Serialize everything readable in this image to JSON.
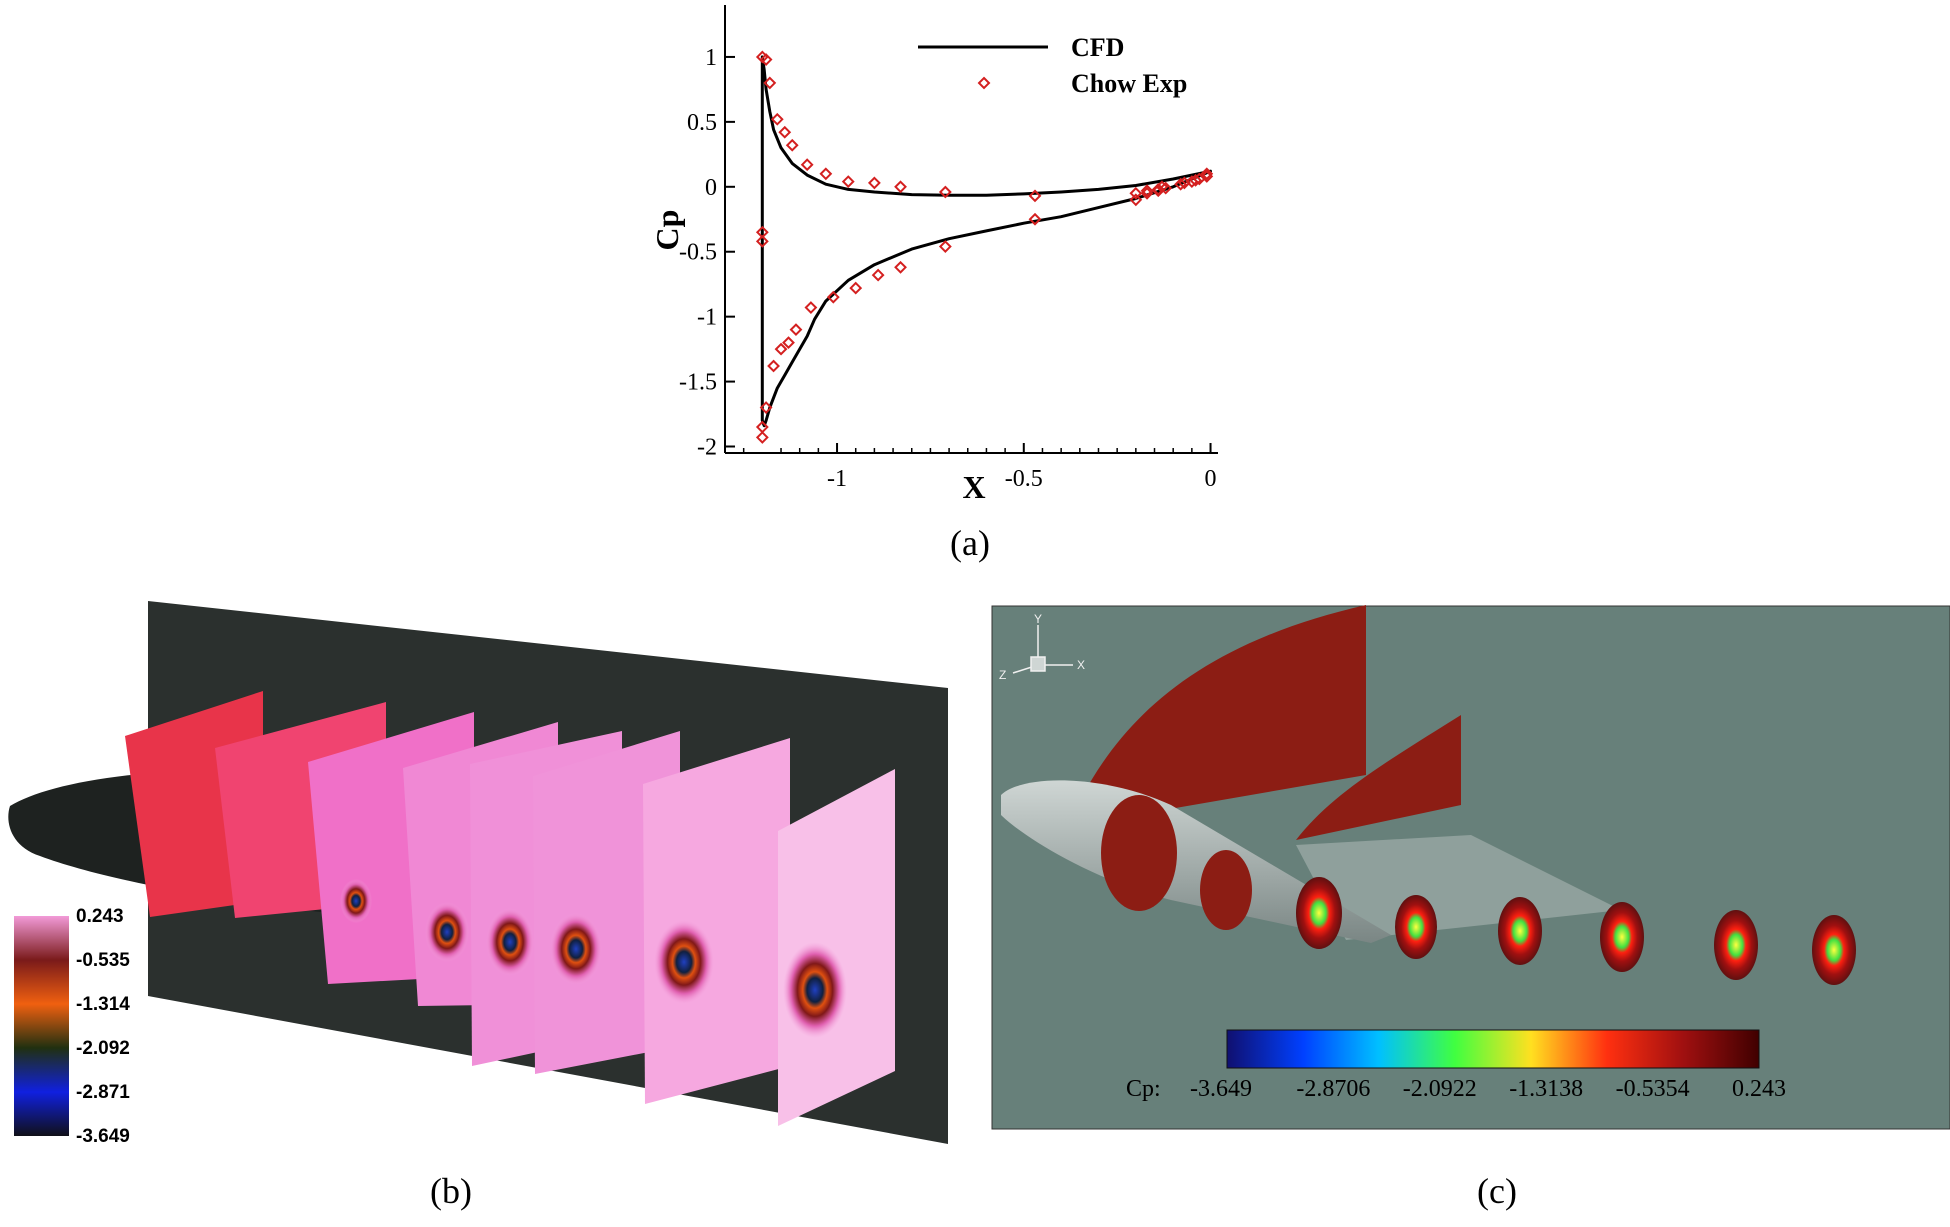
{
  "chart_data": {
    "type": "line",
    "xlabel": "X",
    "ylabel": "Cp",
    "xlim": [
      -1.3,
      0.02
    ],
    "ylim": [
      -2.05,
      1.4
    ],
    "x_ticks": [
      "-1",
      "-0.5",
      "0"
    ],
    "y_ticks": [
      "1",
      "0.5",
      "0",
      "-0.5",
      "-1",
      "-1.5",
      "-2"
    ],
    "x_tick_values": [
      -1,
      -0.5,
      0
    ],
    "y_tick_values": [
      1,
      0.5,
      0,
      -0.5,
      -1,
      -1.5,
      -2
    ],
    "legend_position": "top-right",
    "series": [
      {
        "name": "CFD",
        "style": "solid black line",
        "x": [
          -1.2,
          -1.2,
          -1.195,
          -1.19,
          -1.18,
          -1.17,
          -1.15,
          -1.12,
          -1.08,
          -1.03,
          -0.97,
          -0.9,
          -0.8,
          -0.7,
          -0.6,
          -0.5,
          -0.4,
          -0.3,
          -0.2,
          -0.1,
          0.0,
          -0.1,
          -0.2,
          -0.3,
          -0.4,
          -0.5,
          -0.6,
          -0.7,
          -0.8,
          -0.9,
          -0.97,
          -1.03,
          -1.06,
          -1.08,
          -1.1,
          -1.12,
          -1.14,
          -1.16,
          -1.18,
          -1.19,
          -1.195,
          -1.2,
          -1.2
        ],
        "y": [
          -1.35,
          1.0,
          0.9,
          0.75,
          0.58,
          0.44,
          0.3,
          0.18,
          0.09,
          0.02,
          -0.02,
          -0.04,
          -0.06,
          -0.065,
          -0.065,
          -0.055,
          -0.04,
          -0.02,
          0.01,
          0.06,
          0.12,
          0.0,
          -0.09,
          -0.16,
          -0.23,
          -0.28,
          -0.34,
          -0.4,
          -0.48,
          -0.6,
          -0.72,
          -0.88,
          -1.02,
          -1.15,
          -1.25,
          -1.35,
          -1.45,
          -1.55,
          -1.7,
          -1.8,
          -1.84,
          -1.8,
          -1.35
        ]
      },
      {
        "name": "Chow Exp",
        "style": "red open diamond markers",
        "x": [
          -1.2,
          -1.19,
          -1.18,
          -1.16,
          -1.14,
          -1.12,
          -1.08,
          -1.03,
          -0.97,
          -0.9,
          -0.83,
          -0.71,
          -0.47,
          -0.2,
          -0.17,
          -0.14,
          -0.13,
          -0.08,
          -0.05,
          -0.03,
          -0.01,
          -1.2,
          -1.2,
          -1.2,
          -1.2,
          -1.19,
          -1.17,
          -1.15,
          -1.13,
          -1.11,
          -1.07,
          -1.01,
          -0.95,
          -0.89,
          -0.83,
          -0.71,
          -0.47,
          -0.2,
          -0.17,
          -0.14,
          -0.12,
          -0.07,
          -0.04,
          -0.01
        ],
        "y": [
          1.0,
          0.98,
          0.8,
          0.52,
          0.42,
          0.32,
          0.17,
          0.1,
          0.04,
          0.03,
          0.0,
          -0.04,
          -0.07,
          -0.05,
          -0.03,
          -0.02,
          0.0,
          0.02,
          0.04,
          0.06,
          0.1,
          -0.35,
          -0.42,
          -1.85,
          -1.93,
          -1.7,
          -1.38,
          -1.25,
          -1.2,
          -1.1,
          -0.93,
          -0.85,
          -0.78,
          -0.68,
          -0.62,
          -0.46,
          -0.25,
          -0.1,
          -0.05,
          -0.03,
          -0.01,
          0.03,
          0.05,
          0.08
        ]
      }
    ]
  },
  "captions": {
    "a": "(a)",
    "b": "(b)",
    "c": "(c)"
  },
  "panel_b": {
    "colorbar_labels": [
      "0.243",
      "-0.535",
      "-1.314",
      "-2.092",
      "-2.871",
      "-3.649"
    ],
    "colorbar_colors": [
      "#f29ad8",
      "#7a1a1a",
      "#f06010",
      "#203010",
      "#1020e0",
      "#101018"
    ]
  },
  "panel_c": {
    "axes_labels": {
      "y": "Y",
      "z": "Z",
      "x": "X"
    },
    "colorbar_title": "Cp:",
    "colorbar_labels": [
      "-3.649",
      "-2.8706",
      "-2.0922",
      "-1.3138",
      "-0.5354",
      "0.243"
    ],
    "colorbar_colors": [
      "#101070",
      "#0040ff",
      "#00c0ff",
      "#40ff40",
      "#ffe020",
      "#ff3010",
      "#a01010",
      "#400000"
    ],
    "background": "#67807a"
  }
}
